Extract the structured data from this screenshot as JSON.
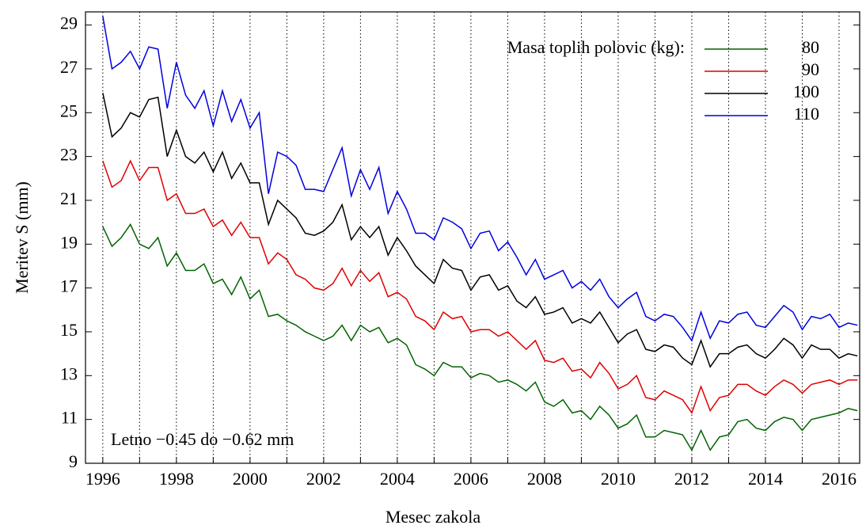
{
  "chart_data": {
    "type": "line",
    "xlabel": "Mesec zakola",
    "ylabel": "Meritev S (mm)",
    "legend_title": "Masa toplih polovic (kg):",
    "legend": "upper right",
    "annotation": "Letno −0.45 do −0.62 mm",
    "xlim": [
      1995.53,
      2016.56
    ],
    "xticks": [
      1996,
      1998,
      2000,
      2002,
      2004,
      2006,
      2008,
      2010,
      2012,
      2014,
      2016
    ],
    "minor_xticks": [
      1997,
      1999,
      2001,
      2003,
      2005,
      2007,
      2009,
      2011,
      2013,
      2015
    ],
    "xgrid": true,
    "ylim": [
      9,
      29.6
    ],
    "yticks": [
      9,
      11,
      13,
      15,
      17,
      19,
      21,
      23,
      25,
      27,
      29
    ],
    "x": [
      1996,
      1996.25,
      1996.5,
      1996.75,
      1997,
      1997.25,
      1997.5,
      1997.75,
      1998,
      1998.25,
      1998.5,
      1998.75,
      1999,
      1999.25,
      1999.5,
      1999.75,
      2000,
      2000.25,
      2000.5,
      2000.75,
      2001,
      2001.25,
      2001.5,
      2001.75,
      2002,
      2002.25,
      2002.5,
      2002.75,
      2003,
      2003.25,
      2003.5,
      2003.75,
      2004,
      2004.25,
      2004.5,
      2004.75,
      2005,
      2005.25,
      2005.5,
      2005.75,
      2006,
      2006.25,
      2006.5,
      2006.75,
      2007,
      2007.25,
      2007.5,
      2007.75,
      2008,
      2008.25,
      2008.5,
      2008.75,
      2009,
      2009.25,
      2009.5,
      2009.75,
      2010,
      2010.25,
      2010.5,
      2010.75,
      2011,
      2011.25,
      2011.5,
      2011.75,
      2012,
      2012.25,
      2012.5,
      2012.75,
      2013,
      2013.25,
      2013.5,
      2013.75,
      2014,
      2014.25,
      2014.5,
      2014.75,
      2015,
      2015.25,
      2015.5,
      2015.75,
      2016,
      2016.25,
      2016.5
    ],
    "series": [
      {
        "name": "80",
        "color": "#006400",
        "values": [
          19.8,
          18.9,
          19.3,
          19.9,
          19.0,
          18.8,
          19.3,
          18.0,
          18.6,
          17.8,
          17.8,
          18.1,
          17.2,
          17.4,
          16.7,
          17.5,
          16.5,
          16.9,
          15.7,
          15.8,
          15.5,
          15.3,
          15.0,
          14.8,
          14.6,
          14.8,
          15.3,
          14.6,
          15.3,
          15.0,
          15.2,
          14.5,
          14.7,
          14.4,
          13.5,
          13.3,
          13.0,
          13.6,
          13.4,
          13.4,
          12.9,
          13.1,
          13.0,
          12.7,
          12.8,
          12.6,
          12.3,
          12.7,
          11.8,
          11.6,
          11.9,
          11.3,
          11.4,
          11.0,
          11.6,
          11.2,
          10.6,
          10.8,
          11.2,
          10.2,
          10.2,
          10.5,
          10.4,
          10.3,
          9.6,
          10.5,
          9.6,
          10.2,
          10.3,
          10.9,
          11.0,
          10.6,
          10.5,
          10.9,
          11.1,
          11.0,
          10.5,
          11.0,
          11.1,
          11.2,
          11.3,
          11.5,
          11.4
        ]
      },
      {
        "name": "90",
        "color": "#e00000",
        "values": [
          22.8,
          21.6,
          21.9,
          22.8,
          21.9,
          22.5,
          22.5,
          21.0,
          21.3,
          20.4,
          20.4,
          20.6,
          19.8,
          20.1,
          19.4,
          20.0,
          19.3,
          19.3,
          18.1,
          18.6,
          18.3,
          17.6,
          17.4,
          17.0,
          16.9,
          17.2,
          17.9,
          17.1,
          17.8,
          17.3,
          17.7,
          16.6,
          16.8,
          16.5,
          15.7,
          15.5,
          15.1,
          15.9,
          15.6,
          15.7,
          15.0,
          15.1,
          15.1,
          14.8,
          15.0,
          14.6,
          14.2,
          14.6,
          13.7,
          13.6,
          13.8,
          13.2,
          13.3,
          12.9,
          13.6,
          13.1,
          12.4,
          12.6,
          13.0,
          12.0,
          11.9,
          12.3,
          12.1,
          11.9,
          11.3,
          12.5,
          11.4,
          12.0,
          12.1,
          12.6,
          12.6,
          12.3,
          12.1,
          12.5,
          12.8,
          12.6,
          12.2,
          12.6,
          12.7,
          12.8,
          12.6,
          12.8,
          12.8
        ]
      },
      {
        "name": "100",
        "color": "#000000",
        "values": [
          25.9,
          23.9,
          24.3,
          25.0,
          24.8,
          25.6,
          25.7,
          23.0,
          24.2,
          23.0,
          22.7,
          23.2,
          22.3,
          23.2,
          22.0,
          22.7,
          21.8,
          21.8,
          19.9,
          21.0,
          20.6,
          20.2,
          19.5,
          19.4,
          19.6,
          20.0,
          20.8,
          19.2,
          19.8,
          19.3,
          19.8,
          18.5,
          19.3,
          18.7,
          18.0,
          17.6,
          17.2,
          18.3,
          17.9,
          17.8,
          16.9,
          17.5,
          17.6,
          16.9,
          17.1,
          16.4,
          16.1,
          16.6,
          15.8,
          15.9,
          16.1,
          15.4,
          15.6,
          15.4,
          15.9,
          15.2,
          14.5,
          14.9,
          15.1,
          14.2,
          14.1,
          14.4,
          14.3,
          13.8,
          13.5,
          14.6,
          13.4,
          14.0,
          14.0,
          14.3,
          14.4,
          14.0,
          13.8,
          14.2,
          14.7,
          14.4,
          13.8,
          14.4,
          14.2,
          14.2,
          13.8,
          14.0,
          13.9
        ]
      },
      {
        "name": "110",
        "color": "#0000e0",
        "values": [
          29.4,
          27.0,
          27.3,
          27.8,
          27.0,
          28.0,
          27.9,
          25.2,
          27.3,
          25.8,
          25.2,
          26.0,
          24.4,
          26.0,
          24.6,
          25.6,
          24.3,
          25.0,
          21.3,
          23.2,
          23.0,
          22.6,
          21.5,
          21.5,
          21.4,
          22.4,
          23.4,
          21.2,
          22.4,
          21.5,
          22.5,
          20.4,
          21.4,
          20.6,
          19.5,
          19.5,
          19.2,
          20.2,
          20.0,
          19.7,
          18.8,
          19.5,
          19.6,
          18.7,
          19.1,
          18.4,
          17.6,
          18.3,
          17.4,
          17.6,
          17.8,
          17.0,
          17.3,
          16.9,
          17.4,
          16.6,
          16.1,
          16.5,
          16.8,
          15.7,
          15.5,
          15.8,
          15.7,
          15.2,
          14.6,
          15.9,
          14.7,
          15.5,
          15.4,
          15.8,
          15.9,
          15.3,
          15.2,
          15.7,
          16.2,
          15.9,
          15.1,
          15.7,
          15.6,
          15.8,
          15.2,
          15.4,
          15.3
        ]
      }
    ]
  }
}
